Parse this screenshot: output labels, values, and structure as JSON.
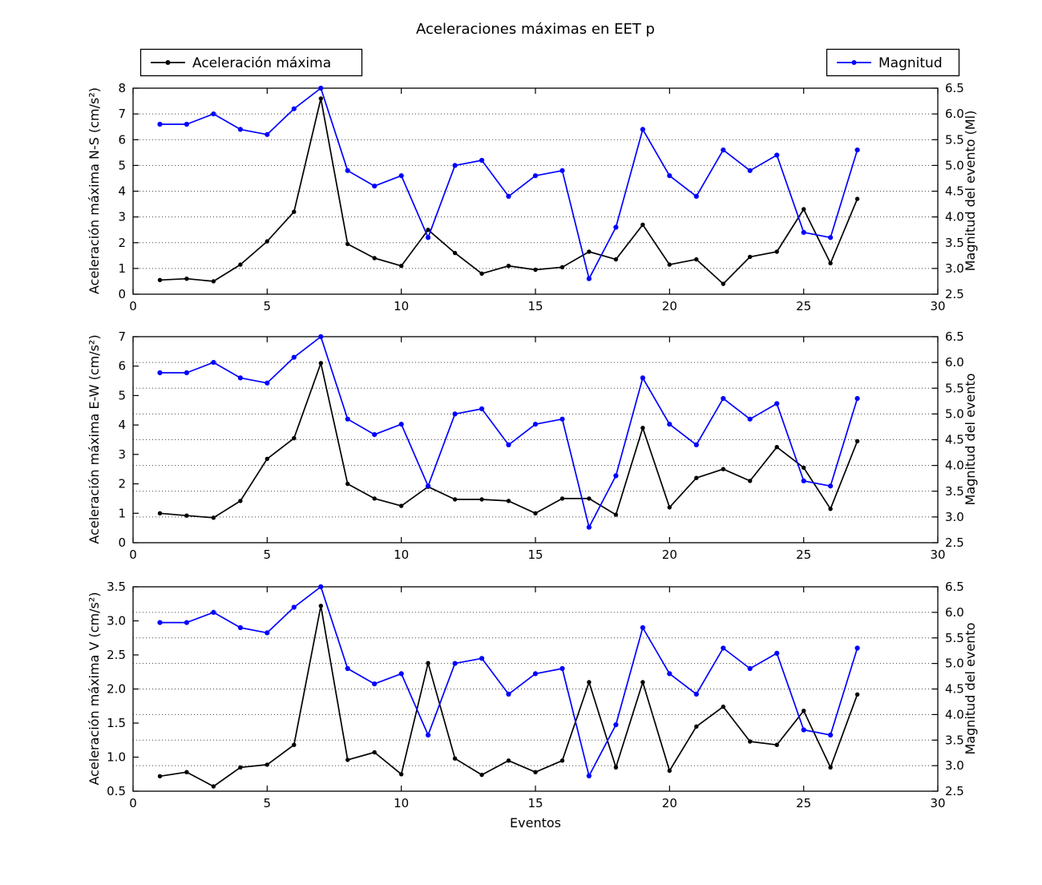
{
  "title": "Aceleraciones máximas en EET p",
  "xlabel": "Eventos",
  "legend_accel": {
    "label": "Aceleración máxima",
    "color": "#000000"
  },
  "legend_mag": {
    "label": "Magnitud",
    "color": "#0000ff"
  },
  "colors": {
    "accel": "#000000",
    "magnitud": "#0000ff",
    "grid": "#444444",
    "spine": "#000000"
  },
  "chart_data": [
    {
      "type": "line",
      "ylabel_left": "Aceleración máxima N-S (cm/s²)",
      "ylabel_right": "Magnitud del evento (Ml)",
      "ylim_left": [
        0,
        8
      ],
      "ylim_right": [
        2.5,
        6.5
      ],
      "yticks_left": [
        "0",
        "1",
        "2",
        "3",
        "4",
        "5",
        "6",
        "7",
        "8"
      ],
      "yticks_right": [
        "2.5",
        "3.0",
        "3.5",
        "4.0",
        "4.5",
        "5.0",
        "5.5",
        "6.0",
        "6.5"
      ],
      "xlim": [
        0,
        30
      ],
      "xticks": [
        "0",
        "5",
        "10",
        "15",
        "20",
        "25",
        "30"
      ],
      "grid": "horizontal-dotted",
      "x": [
        1,
        2,
        3,
        4,
        5,
        6,
        7,
        8,
        9,
        10,
        11,
        12,
        13,
        14,
        15,
        16,
        17,
        18,
        19,
        20,
        21,
        22,
        23,
        24,
        25,
        26,
        27
      ],
      "series": [
        {
          "name": "Aceleración máxima",
          "axis": "left",
          "color": "#000000",
          "values": [
            0.55,
            0.6,
            0.5,
            1.15,
            2.05,
            3.2,
            7.6,
            1.95,
            1.4,
            1.1,
            2.5,
            1.6,
            0.8,
            1.1,
            0.95,
            1.05,
            1.65,
            1.35,
            2.7,
            1.15,
            1.35,
            0.4,
            1.45,
            1.65,
            3.3,
            1.2,
            3.7
          ]
        },
        {
          "name": "Magnitud",
          "axis": "right",
          "color": "#0000ff",
          "values": [
            5.8,
            5.8,
            6.0,
            5.7,
            5.6,
            6.1,
            6.5,
            4.9,
            4.6,
            4.8,
            3.6,
            5.0,
            5.1,
            4.4,
            4.8,
            4.9,
            2.8,
            3.8,
            5.7,
            4.8,
            4.4,
            5.3,
            4.9,
            5.2,
            3.7,
            3.6,
            5.3
          ]
        }
      ]
    },
    {
      "type": "line",
      "ylabel_left": "Aceleración máxima E-W (cm/s²)",
      "ylabel_right": "Magnitud del evento",
      "ylim_left": [
        0,
        7
      ],
      "ylim_right": [
        2.5,
        6.5
      ],
      "yticks_left": [
        "0",
        "1",
        "2",
        "3",
        "4",
        "5",
        "6",
        "7"
      ],
      "yticks_right": [
        "2.5",
        "3.0",
        "3.5",
        "4.0",
        "4.5",
        "5.0",
        "5.5",
        "6.0",
        "6.5"
      ],
      "xlim": [
        0,
        30
      ],
      "xticks": [
        "0",
        "5",
        "10",
        "15",
        "20",
        "25",
        "30"
      ],
      "grid": "horizontal-dotted",
      "x": [
        1,
        2,
        3,
        4,
        5,
        6,
        7,
        8,
        9,
        10,
        11,
        12,
        13,
        14,
        15,
        16,
        17,
        18,
        19,
        20,
        21,
        22,
        23,
        24,
        25,
        26,
        27
      ],
      "series": [
        {
          "name": "Aceleración máxima",
          "axis": "left",
          "color": "#000000",
          "values": [
            1.0,
            0.92,
            0.85,
            1.42,
            2.85,
            3.55,
            6.1,
            2.0,
            1.5,
            1.25,
            1.9,
            1.47,
            1.47,
            1.42,
            1.0,
            1.5,
            1.5,
            0.95,
            3.9,
            1.2,
            2.2,
            2.5,
            2.1,
            3.25,
            2.55,
            1.15,
            3.45
          ]
        },
        {
          "name": "Magnitud",
          "axis": "right",
          "color": "#0000ff",
          "values": [
            5.8,
            5.8,
            6.0,
            5.7,
            5.6,
            6.1,
            6.5,
            4.9,
            4.6,
            4.8,
            3.6,
            5.0,
            5.1,
            4.4,
            4.8,
            4.9,
            2.8,
            3.8,
            5.7,
            4.8,
            4.4,
            5.3,
            4.9,
            5.2,
            3.7,
            3.6,
            5.3
          ]
        }
      ]
    },
    {
      "type": "line",
      "ylabel_left": "Aceleración máxima V (cm/s²)",
      "ylabel_right": "Magnitud del evento",
      "ylim_left": [
        0.5,
        3.5
      ],
      "ylim_right": [
        2.5,
        6.5
      ],
      "yticks_left": [
        "0.5",
        "1.0",
        "1.5",
        "2.0",
        "2.5",
        "3.0",
        "3.5"
      ],
      "yticks_right": [
        "2.5",
        "3.0",
        "3.5",
        "4.0",
        "4.5",
        "5.0",
        "5.5",
        "6.0",
        "6.5"
      ],
      "xlim": [
        0,
        30
      ],
      "xticks": [
        "0",
        "5",
        "10",
        "15",
        "20",
        "25",
        "30"
      ],
      "grid": "horizontal-dotted",
      "x": [
        1,
        2,
        3,
        4,
        5,
        6,
        7,
        8,
        9,
        10,
        11,
        12,
        13,
        14,
        15,
        16,
        17,
        18,
        19,
        20,
        21,
        22,
        23,
        24,
        25,
        26,
        27
      ],
      "series": [
        {
          "name": "Aceleración máxima",
          "axis": "left",
          "color": "#000000",
          "values": [
            0.72,
            0.78,
            0.57,
            0.85,
            0.89,
            1.18,
            3.22,
            0.96,
            1.07,
            0.75,
            2.38,
            0.98,
            0.74,
            0.95,
            0.78,
            0.95,
            2.1,
            0.85,
            2.1,
            0.8,
            1.45,
            1.74,
            1.23,
            1.18,
            1.68,
            0.85,
            1.92
          ]
        },
        {
          "name": "Magnitud",
          "axis": "right",
          "color": "#0000ff",
          "values": [
            5.8,
            5.8,
            6.0,
            5.7,
            5.6,
            6.1,
            6.5,
            4.9,
            4.6,
            4.8,
            3.6,
            5.0,
            5.1,
            4.4,
            4.8,
            4.9,
            2.8,
            3.8,
            5.7,
            4.8,
            4.4,
            5.3,
            4.9,
            5.2,
            3.7,
            3.6,
            5.3
          ]
        }
      ]
    }
  ]
}
